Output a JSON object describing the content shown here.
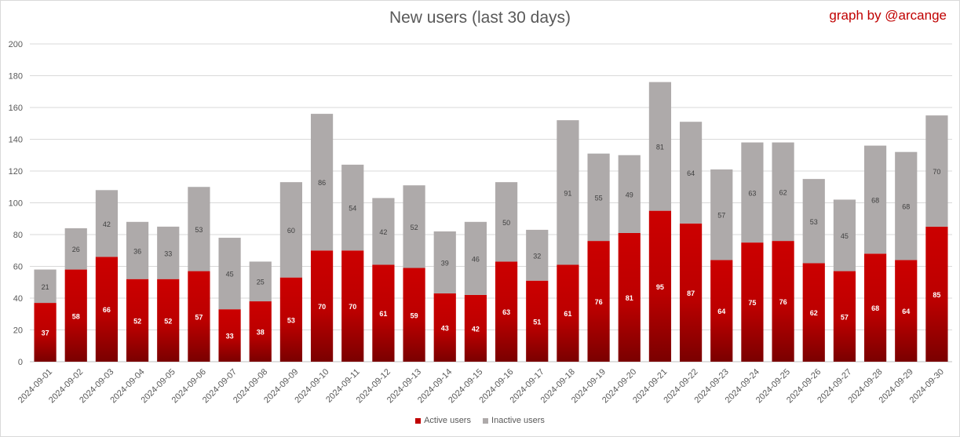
{
  "chart_data": {
    "type": "bar",
    "stacked": true,
    "title": "New users (last 30 days)",
    "credit": "graph by @arcange",
    "categories": [
      "2024-09-01",
      "2024-09-02",
      "2024-09-03",
      "2024-09-04",
      "2024-09-05",
      "2024-09-06",
      "2024-09-07",
      "2024-09-08",
      "2024-09-09",
      "2024-09-10",
      "2024-09-11",
      "2024-09-12",
      "2024-09-13",
      "2024-09-14",
      "2024-09-15",
      "2024-09-16",
      "2024-09-17",
      "2024-09-18",
      "2024-09-19",
      "2024-09-20",
      "2024-09-21",
      "2024-09-22",
      "2024-09-23",
      "2024-09-24",
      "2024-09-25",
      "2024-09-26",
      "2024-09-27",
      "2024-09-28",
      "2024-09-29",
      "2024-09-30"
    ],
    "series": [
      {
        "name": "Active users",
        "color": "#c00000",
        "values": [
          37,
          58,
          66,
          52,
          52,
          57,
          33,
          38,
          53,
          70,
          70,
          61,
          59,
          43,
          42,
          63,
          51,
          61,
          76,
          81,
          95,
          87,
          64,
          75,
          76,
          62,
          57,
          68,
          64,
          85
        ]
      },
      {
        "name": "Inactive users",
        "color": "#aeaaaa",
        "values": [
          21,
          26,
          42,
          36,
          33,
          53,
          45,
          25,
          60,
          86,
          54,
          42,
          52,
          39,
          46,
          50,
          32,
          91,
          55,
          49,
          81,
          64,
          57,
          63,
          62,
          53,
          45,
          68,
          68,
          70
        ]
      }
    ],
    "ylim": [
      0,
      200
    ],
    "yticks": [
      0,
      20,
      40,
      60,
      80,
      100,
      120,
      140,
      160,
      180,
      200
    ],
    "grid": true,
    "legend_position": "bottom"
  }
}
